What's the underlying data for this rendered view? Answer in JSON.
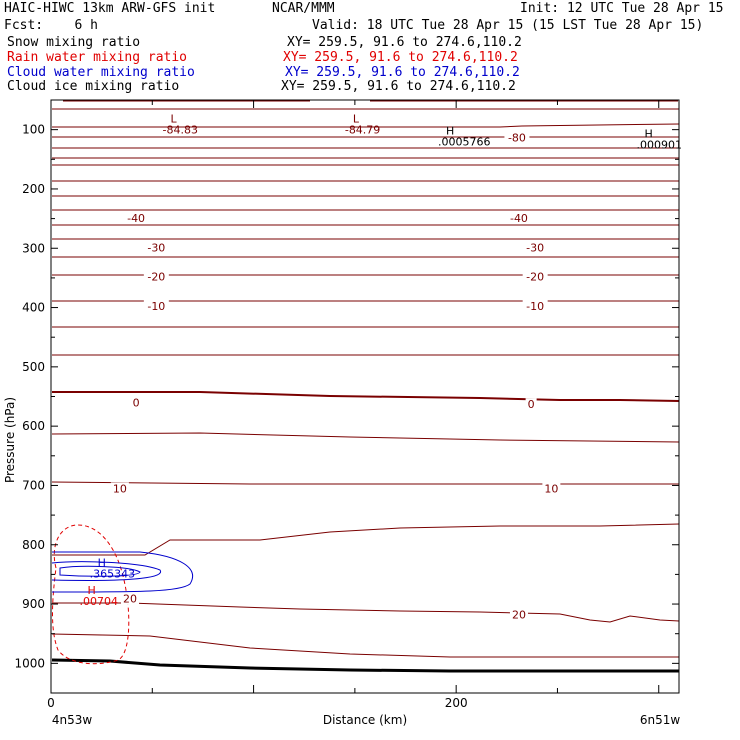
{
  "header": {
    "model": "HAIC-HIWC 13km ARW-GFS init",
    "org": "NCAR/MMM",
    "init": "Init: 12 UTC Tue 28 Apr 15",
    "fcst": "Fcst:    6 h",
    "valid": "Valid: 18 UTC Tue 28 Apr 15 (15 LST Tue 28 Apr 15)"
  },
  "fields": [
    {
      "name": "Snow mixing ratio",
      "xy": "XY= 259.5, 91.6 to 274.6,110.2",
      "color": "#000000"
    },
    {
      "name": "Rain water mixing ratio",
      "xy": "XY= 259.5, 91.6 to 274.6,110.2",
      "color": "#e00000"
    },
    {
      "name": "Cloud water mixing ratio",
      "xy": "XY= 259.5, 91.6 to 274.6,110.2",
      "color": "#0000cc"
    },
    {
      "name": "Cloud ice mixing ratio",
      "xy": "XY= 259.5, 91.6 to 274.6,110.2",
      "color": "#000000"
    }
  ],
  "chart_data": {
    "type": "contour-cross-section",
    "xlabel": "Distance (km)",
    "ylabel": "Pressure (hPa)",
    "xlim": [
      0,
      310
    ],
    "ylim": [
      1050,
      50
    ],
    "x_ticks": [
      0,
      200
    ],
    "y_ticks": [
      100,
      200,
      300,
      400,
      500,
      600,
      700,
      800,
      900,
      1000
    ],
    "endpoints": {
      "left": "4n53w",
      "right": "6n51w"
    },
    "temperature_isotherms": {
      "color": "#7a0000",
      "labels": [
        {
          "text": "-80",
          "x": 230,
          "p": 113
        },
        {
          "text": "-40",
          "x": 42,
          "p": 249
        },
        {
          "text": "-40",
          "x": 231,
          "p": 249
        },
        {
          "text": "-30",
          "x": 52,
          "p": 299
        },
        {
          "text": "-30",
          "x": 239,
          "p": 299
        },
        {
          "text": "-20",
          "x": 52,
          "p": 348
        },
        {
          "text": "-20",
          "x": 239,
          "p": 348
        },
        {
          "text": "-10",
          "x": 52,
          "p": 397
        },
        {
          "text": "-10",
          "x": 239,
          "p": 397
        },
        {
          "text": "0",
          "x": 42,
          "p": 560
        },
        {
          "text": "0",
          "x": 237,
          "p": 563
        },
        {
          "text": "10",
          "x": 34,
          "p": 705
        },
        {
          "text": "10",
          "x": 247,
          "p": 705
        },
        {
          "text": "20",
          "x": 39,
          "p": 891
        },
        {
          "text": "20",
          "x": 231,
          "p": 918
        }
      ]
    },
    "extrema": [
      {
        "kind": "L",
        "value": "-84.83",
        "x": 59,
        "p": 88,
        "color": "#7a0000"
      },
      {
        "kind": "L",
        "value": "-84.79",
        "x": 149,
        "p": 88,
        "color": "#7a0000"
      },
      {
        "kind": "H",
        "value": ".0005766",
        "x": 195,
        "p": 108,
        "color": "#000000"
      },
      {
        "kind": "H",
        "value": ".000901",
        "x": 293,
        "p": 113,
        "color": "#000000"
      },
      {
        "kind": "H",
        "value": ".365343",
        "x": 23,
        "p": 837,
        "color": "#0000cc"
      },
      {
        "kind": "H",
        "value": ".00704",
        "x": 18,
        "p": 883,
        "color": "#e00000"
      }
    ]
  }
}
